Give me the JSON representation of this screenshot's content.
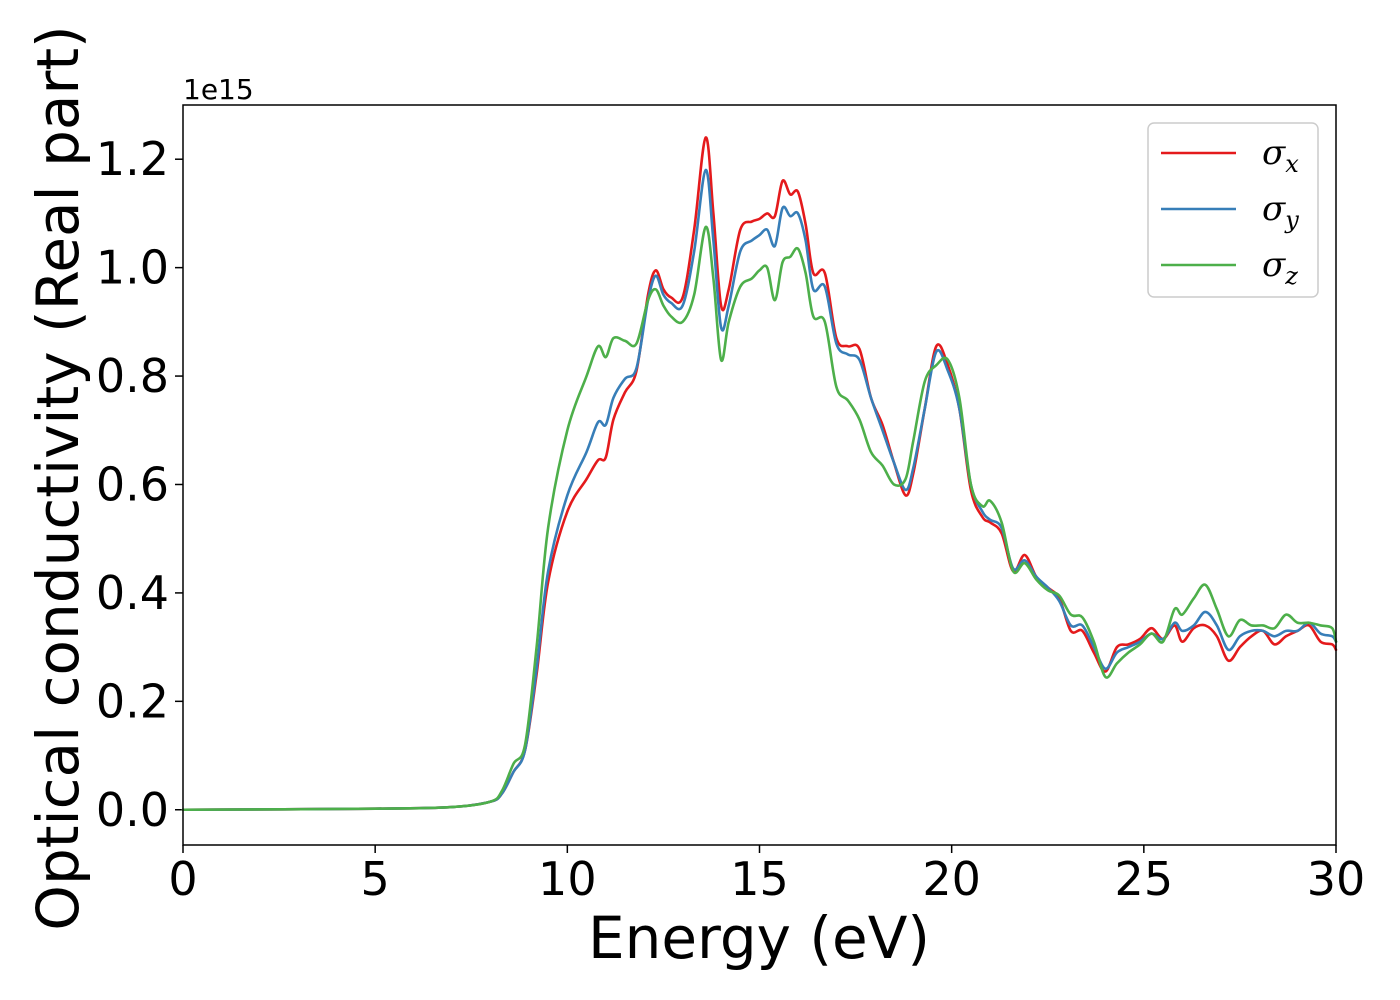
{
  "chart_data": {
    "type": "line",
    "xlabel": "Energy (eV)",
    "ylabel": "Optical conductivity (Real part)",
    "y_offset_label": "1e15",
    "xlim": [
      0,
      30
    ],
    "ylim": [
      -0.065,
      1.3
    ],
    "x_ticks": [
      0,
      5,
      10,
      15,
      20,
      25,
      30
    ],
    "x_tick_labels": [
      "0",
      "5",
      "10",
      "15",
      "20",
      "25",
      "30"
    ],
    "y_ticks": [
      0.0,
      0.2,
      0.4,
      0.6,
      0.8,
      1.0,
      1.2
    ],
    "y_tick_labels": [
      "0.0",
      "0.2",
      "0.4",
      "0.6",
      "0.8",
      "1.0",
      "1.2"
    ],
    "grid": false,
    "legend_position": "top-right",
    "x": [
      0,
      5,
      7,
      8,
      8.3,
      8.6,
      8.9,
      9.2,
      9.5,
      10,
      10.5,
      10.8,
      11,
      11.2,
      11.5,
      11.8,
      12.1,
      12.3,
      12.5,
      12.7,
      13,
      13.3,
      13.6,
      13.8,
      14,
      14.2,
      14.5,
      14.8,
      15,
      15.2,
      15.4,
      15.6,
      15.8,
      16,
      16.2,
      16.4,
      16.7,
      17,
      17.3,
      17.6,
      17.9,
      18.2,
      18.5,
      18.8,
      19,
      19.3,
      19.6,
      19.9,
      20.2,
      20.5,
      20.8,
      21,
      21.3,
      21.6,
      21.9,
      22.2,
      22.5,
      22.8,
      23.1,
      23.4,
      23.7,
      24,
      24.3,
      24.6,
      24.9,
      25.2,
      25.5,
      25.8,
      26,
      26.3,
      26.6,
      26.9,
      27.2,
      27.5,
      27.8,
      28.1,
      28.4,
      28.7,
      29,
      29.3,
      29.6,
      29.9,
      30
    ],
    "series": [
      {
        "name": "σx",
        "label_base": "σ",
        "label_sub": "x",
        "color": "#e41a1c",
        "values": [
          0,
          0.002,
          0.005,
          0.015,
          0.03,
          0.07,
          0.11,
          0.25,
          0.42,
          0.55,
          0.61,
          0.645,
          0.65,
          0.72,
          0.77,
          0.81,
          0.95,
          0.995,
          0.96,
          0.945,
          0.945,
          1.07,
          1.24,
          1.1,
          0.93,
          0.96,
          1.07,
          1.085,
          1.09,
          1.1,
          1.095,
          1.16,
          1.135,
          1.14,
          1.08,
          0.99,
          0.99,
          0.87,
          0.855,
          0.85,
          0.76,
          0.71,
          0.64,
          0.58,
          0.62,
          0.74,
          0.855,
          0.82,
          0.74,
          0.59,
          0.54,
          0.53,
          0.51,
          0.44,
          0.47,
          0.43,
          0.41,
          0.39,
          0.33,
          0.33,
          0.29,
          0.255,
          0.3,
          0.305,
          0.315,
          0.335,
          0.315,
          0.34,
          0.31,
          0.335,
          0.34,
          0.32,
          0.275,
          0.3,
          0.32,
          0.33,
          0.305,
          0.32,
          0.33,
          0.34,
          0.31,
          0.305,
          0.295
        ]
      },
      {
        "name": "σy",
        "label_base": "σ",
        "label_sub": "y",
        "color": "#377eb8",
        "values": [
          0,
          0.002,
          0.005,
          0.015,
          0.03,
          0.07,
          0.11,
          0.26,
          0.44,
          0.58,
          0.66,
          0.715,
          0.71,
          0.76,
          0.795,
          0.815,
          0.94,
          0.985,
          0.95,
          0.935,
          0.93,
          1.03,
          1.18,
          1.05,
          0.89,
          0.93,
          1.03,
          1.05,
          1.06,
          1.07,
          1.04,
          1.11,
          1.095,
          1.1,
          1.05,
          0.96,
          0.965,
          0.86,
          0.84,
          0.83,
          0.76,
          0.7,
          0.64,
          0.59,
          0.63,
          0.74,
          0.845,
          0.81,
          0.74,
          0.6,
          0.55,
          0.535,
          0.52,
          0.445,
          0.46,
          0.43,
          0.41,
          0.385,
          0.34,
          0.34,
          0.3,
          0.26,
          0.29,
          0.3,
          0.31,
          0.325,
          0.315,
          0.345,
          0.33,
          0.34,
          0.365,
          0.34,
          0.295,
          0.32,
          0.33,
          0.33,
          0.32,
          0.33,
          0.33,
          0.345,
          0.325,
          0.32,
          0.31
        ]
      },
      {
        "name": "σz",
        "label_base": "σ",
        "label_sub": "z",
        "color": "#4daf4a",
        "values": [
          0,
          0.002,
          0.005,
          0.015,
          0.035,
          0.085,
          0.12,
          0.3,
          0.52,
          0.7,
          0.8,
          0.855,
          0.835,
          0.87,
          0.865,
          0.86,
          0.94,
          0.96,
          0.93,
          0.91,
          0.9,
          0.95,
          1.075,
          0.98,
          0.83,
          0.9,
          0.965,
          0.98,
          0.995,
          1.0,
          0.94,
          1.01,
          1.02,
          1.035,
          0.99,
          0.91,
          0.9,
          0.78,
          0.755,
          0.72,
          0.66,
          0.635,
          0.6,
          0.61,
          0.68,
          0.79,
          0.82,
          0.83,
          0.76,
          0.6,
          0.56,
          0.57,
          0.53,
          0.44,
          0.455,
          0.425,
          0.405,
          0.395,
          0.36,
          0.355,
          0.31,
          0.245,
          0.27,
          0.29,
          0.305,
          0.325,
          0.31,
          0.37,
          0.36,
          0.39,
          0.415,
          0.37,
          0.32,
          0.35,
          0.34,
          0.34,
          0.335,
          0.36,
          0.345,
          0.345,
          0.34,
          0.335,
          0.31
        ]
      }
    ]
  }
}
